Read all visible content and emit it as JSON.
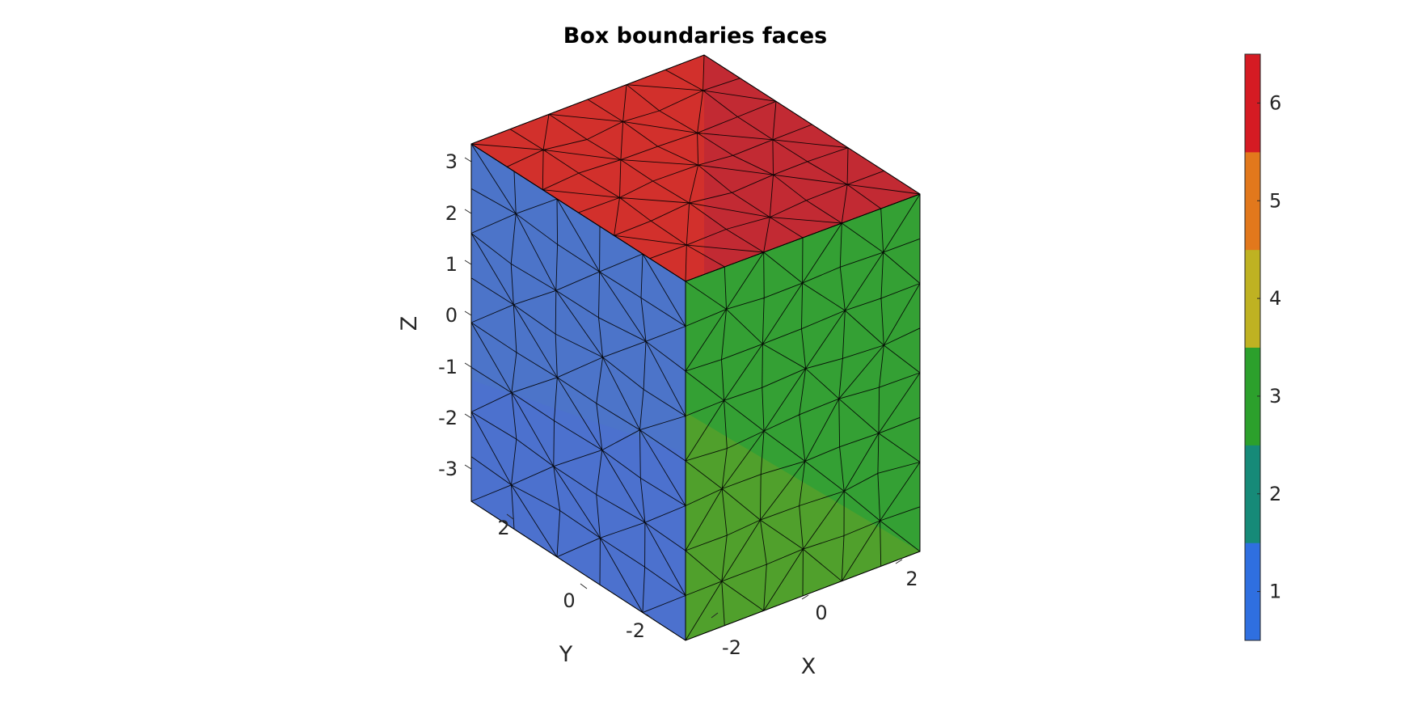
{
  "chart_data": {
    "type": "3d-mesh",
    "title": "Box boundaries faces",
    "axes": {
      "xlabel": "X",
      "ylabel": "Y",
      "zlabel": "Z",
      "x_ticks": [
        "-2",
        "0",
        "2"
      ],
      "y_ticks": [
        "-2",
        "0",
        "2"
      ],
      "z_ticks": [
        "-3",
        "-2",
        "-1",
        "0",
        "1",
        "2",
        "3"
      ],
      "xlim": [
        -2.5,
        2.5
      ],
      "ylim": [
        -3.5,
        3.5
      ],
      "zlim": [
        -3.5,
        3.5
      ]
    },
    "faces_visible": [
      {
        "face_id": 1,
        "plane": "x = -2.5",
        "color": "#4c74c9"
      },
      {
        "face_id": 3,
        "plane": "y = -3.5",
        "color": "#34a034"
      },
      {
        "face_id": 6,
        "plane": "z = 3.5",
        "color": "#d2302c"
      }
    ],
    "mesh": "triangulated",
    "colorbar": {
      "ticks": [
        "1",
        "2",
        "3",
        "4",
        "5",
        "6"
      ],
      "range": [
        0.5,
        6.5
      ],
      "colors": [
        "#2f6fe0",
        "#168a78",
        "#2ca02c",
        "#bfb222",
        "#e2781c",
        "#d51b23"
      ]
    },
    "grid": false,
    "legend": "none"
  }
}
